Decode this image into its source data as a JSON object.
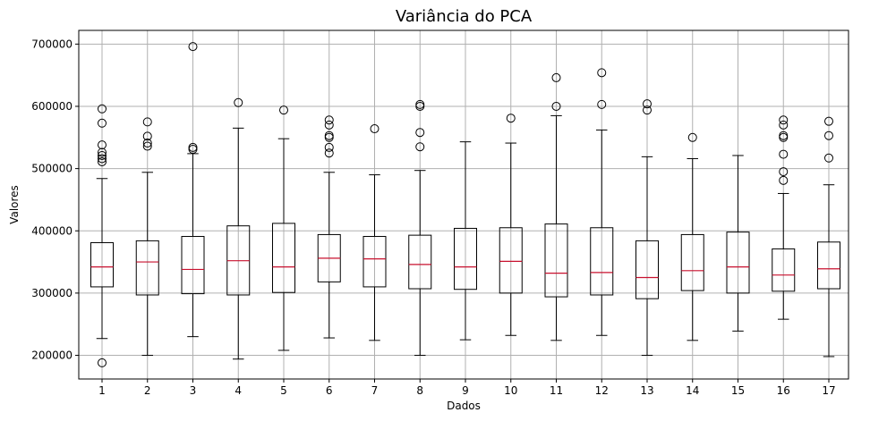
{
  "chart_data": {
    "type": "boxplot",
    "title": "Variância do PCA",
    "xlabel": "Dados",
    "ylabel": "Valores",
    "ylim": [
      162000,
      722000
    ],
    "yticks": [
      200000,
      300000,
      400000,
      500000,
      600000,
      700000
    ],
    "ytick_labels": [
      "200000",
      "300000",
      "400000",
      "500000",
      "600000",
      "700000"
    ],
    "grid": true,
    "colors": {
      "box": "#000000",
      "median": "#c8102e",
      "grid": "#b0b0b0",
      "outlier": "#000000"
    },
    "categories": [
      "1",
      "2",
      "3",
      "4",
      "5",
      "6",
      "7",
      "8",
      "9",
      "10",
      "11",
      "12",
      "13",
      "14",
      "15",
      "16",
      "17"
    ],
    "boxes": [
      {
        "label": "1",
        "whislo": 227000,
        "q1": 310000,
        "median": 342000,
        "q3": 381000,
        "whishi": 484000,
        "fliers": [
          188000,
          511000,
          516000,
          521000,
          526000,
          538000,
          573000,
          596000
        ]
      },
      {
        "label": "2",
        "whislo": 200000,
        "q1": 297000,
        "median": 350000,
        "q3": 384000,
        "whishi": 494000,
        "fliers": [
          536000,
          541000,
          552000,
          575000
        ]
      },
      {
        "label": "3",
        "whislo": 230000,
        "q1": 299000,
        "median": 338000,
        "q3": 391000,
        "whishi": 524000,
        "fliers": [
          531000,
          534000,
          696000
        ]
      },
      {
        "label": "4",
        "whislo": 194000,
        "q1": 297000,
        "median": 352000,
        "q3": 408000,
        "whishi": 565000,
        "fliers": [
          606000
        ]
      },
      {
        "label": "5",
        "whislo": 208000,
        "q1": 301000,
        "median": 342000,
        "q3": 412000,
        "whishi": 548000,
        "fliers": [
          594000
        ]
      },
      {
        "label": "6",
        "whislo": 228000,
        "q1": 318000,
        "median": 356000,
        "q3": 394000,
        "whishi": 494000,
        "fliers": [
          525000,
          534000,
          550000,
          553000,
          570000,
          578000
        ]
      },
      {
        "label": "7",
        "whislo": 224000,
        "q1": 310000,
        "median": 355000,
        "q3": 391000,
        "whishi": 490000,
        "fliers": [
          564000
        ]
      },
      {
        "label": "8",
        "whislo": 200000,
        "q1": 307000,
        "median": 346000,
        "q3": 393000,
        "whishi": 497000,
        "fliers": [
          535000,
          558000,
          600000,
          603000
        ]
      },
      {
        "label": "9",
        "whislo": 225000,
        "q1": 306000,
        "median": 342000,
        "q3": 404000,
        "whishi": 543000,
        "fliers": []
      },
      {
        "label": "10",
        "whislo": 232000,
        "q1": 300000,
        "median": 351000,
        "q3": 405000,
        "whishi": 541000,
        "fliers": [
          581000
        ]
      },
      {
        "label": "11",
        "whislo": 224000,
        "q1": 294000,
        "median": 332000,
        "q3": 411000,
        "whishi": 585000,
        "fliers": [
          600000,
          646000
        ]
      },
      {
        "label": "12",
        "whislo": 232000,
        "q1": 297000,
        "median": 333000,
        "q3": 405000,
        "whishi": 562000,
        "fliers": [
          603000,
          654000
        ]
      },
      {
        "label": "13",
        "whislo": 200000,
        "q1": 291000,
        "median": 325000,
        "q3": 384000,
        "whishi": 519000,
        "fliers": [
          594000,
          604000
        ]
      },
      {
        "label": "14",
        "whislo": 224000,
        "q1": 304000,
        "median": 336000,
        "q3": 394000,
        "whishi": 516000,
        "fliers": [
          550000
        ]
      },
      {
        "label": "15",
        "whislo": 239000,
        "q1": 300000,
        "median": 342000,
        "q3": 398000,
        "whishi": 521000,
        "fliers": []
      },
      {
        "label": "16",
        "whislo": 258000,
        "q1": 303000,
        "median": 329000,
        "q3": 371000,
        "whishi": 460000,
        "fliers": [
          481000,
          495000,
          523000,
          550000,
          553000,
          570000,
          578000
        ]
      },
      {
        "label": "17",
        "whislo": 198000,
        "q1": 307000,
        "median": 339000,
        "q3": 382000,
        "whishi": 474000,
        "fliers": [
          517000,
          553000,
          576000
        ]
      }
    ]
  }
}
